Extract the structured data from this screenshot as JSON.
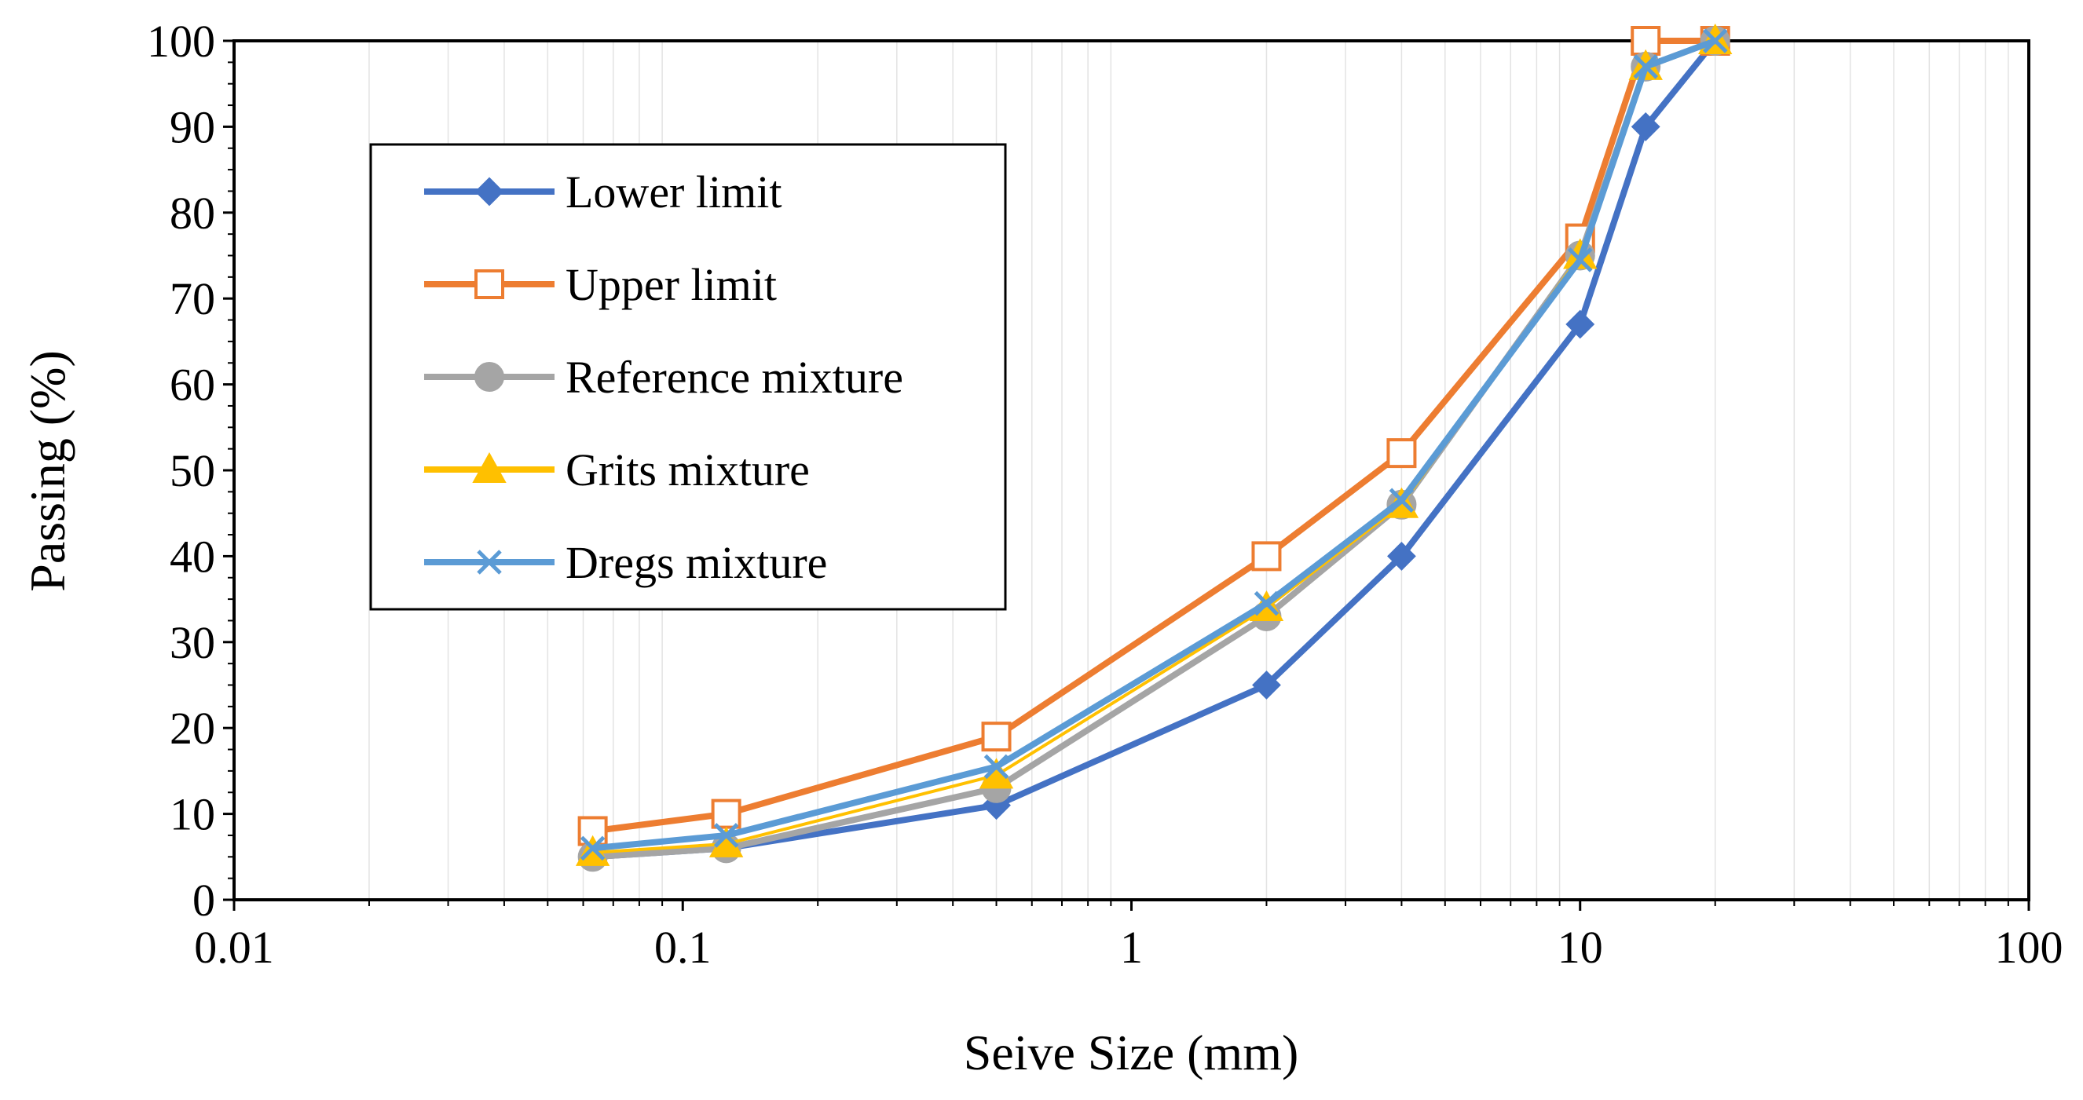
{
  "chart_data": {
    "type": "line",
    "title": "",
    "xlabel": "Seive Size (mm)",
    "ylabel": "Passing (%)",
    "xscale": "log",
    "xlim": [
      0.01,
      100
    ],
    "ylim": [
      0,
      100
    ],
    "xticks": [
      0.01,
      0.1,
      1,
      10,
      100
    ],
    "xtick_labels": [
      "0.01",
      "0.1",
      "1",
      "10",
      "100"
    ],
    "yticks": [
      0,
      10,
      20,
      30,
      40,
      50,
      60,
      70,
      80,
      90,
      100
    ],
    "ytick_labels": [
      "0",
      "10",
      "20",
      "30",
      "40",
      "50",
      "60",
      "70",
      "80",
      "90",
      "100"
    ],
    "grid": "minor vertical",
    "legend_position": "upper-left",
    "x": [
      0.063,
      0.125,
      0.5,
      2,
      4,
      10,
      14,
      20
    ],
    "series": [
      {
        "name": "Lower limit",
        "color": "#4472C4",
        "marker": "diamond",
        "values": [
          5,
          6,
          11,
          25,
          40,
          67,
          90,
          100
        ]
      },
      {
        "name": "Upper limit",
        "color": "#ED7D31",
        "marker": "square-open",
        "values": [
          8,
          10,
          19,
          40,
          52,
          77,
          100,
          100
        ]
      },
      {
        "name": "Reference mixture",
        "color": "#A5A5A5",
        "marker": "circle",
        "values": [
          5,
          6,
          13,
          33,
          46,
          75,
          97,
          100
        ]
      },
      {
        "name": "Grits mixture",
        "color": "#FFC000",
        "marker": "triangle",
        "values": [
          5.5,
          6.5,
          14.5,
          34,
          46,
          75,
          97,
          100
        ]
      },
      {
        "name": "Dregs mixture",
        "color": "#5B9BD5",
        "marker": "x",
        "values": [
          6,
          7.5,
          15.5,
          34.5,
          46.5,
          74.5,
          97,
          100
        ]
      }
    ]
  }
}
